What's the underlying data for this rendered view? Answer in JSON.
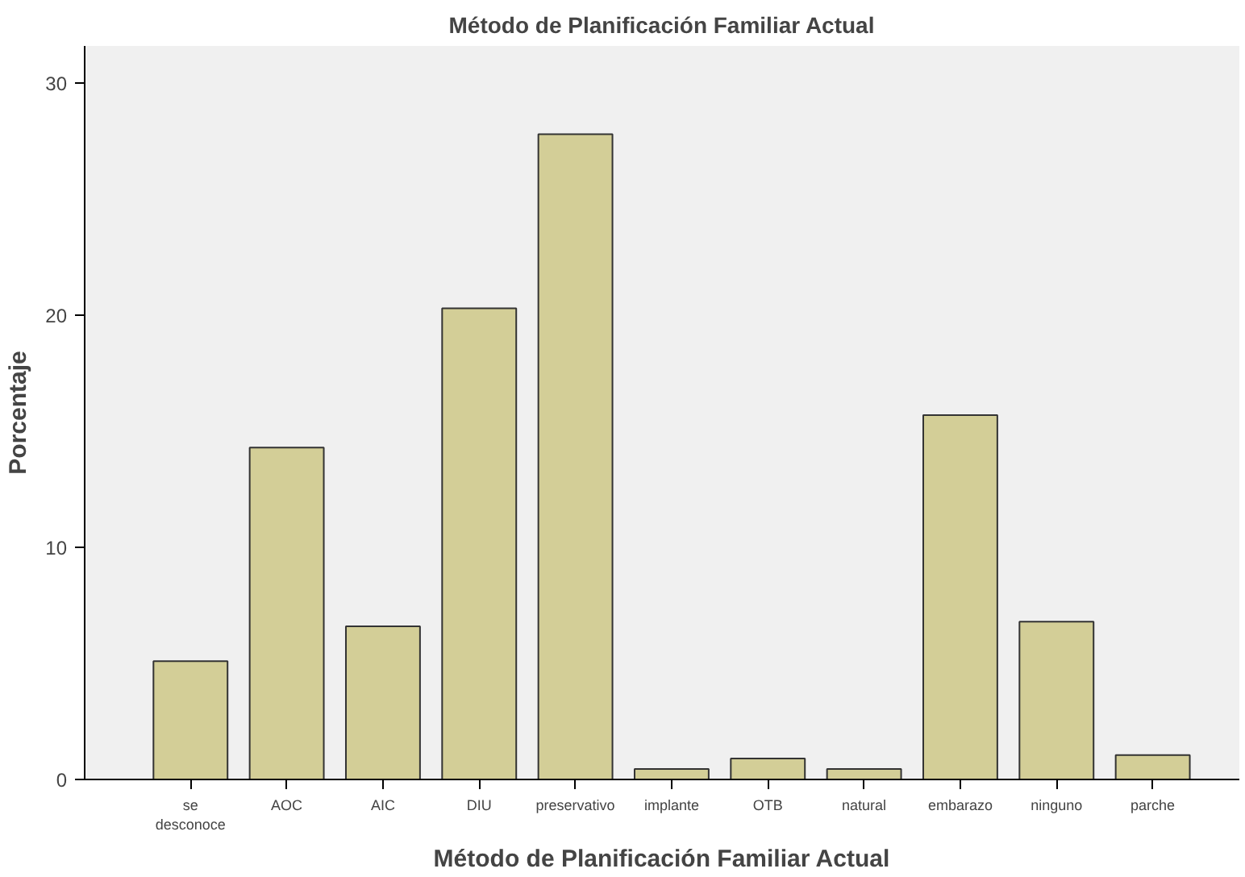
{
  "chart_data": {
    "type": "bar",
    "title": "Método de Planificación Familiar Actual",
    "xlabel": "Método de Planificación Familiar Actual",
    "ylabel": "Porcentaje",
    "categories": [
      "se desconoce",
      "AOC",
      "AIC",
      "DIU",
      "preservativo",
      "implante",
      "OTB",
      "natural",
      "embarazo",
      "ninguno",
      "parche"
    ],
    "values": [
      5.1,
      14.3,
      6.6,
      20.3,
      27.8,
      0.45,
      0.9,
      0.45,
      15.7,
      6.8,
      1.05
    ],
    "color": "#d3ce97",
    "ylim": [
      0,
      31.6
    ],
    "yticks": [
      0,
      10,
      20,
      30
    ],
    "grid": false
  }
}
